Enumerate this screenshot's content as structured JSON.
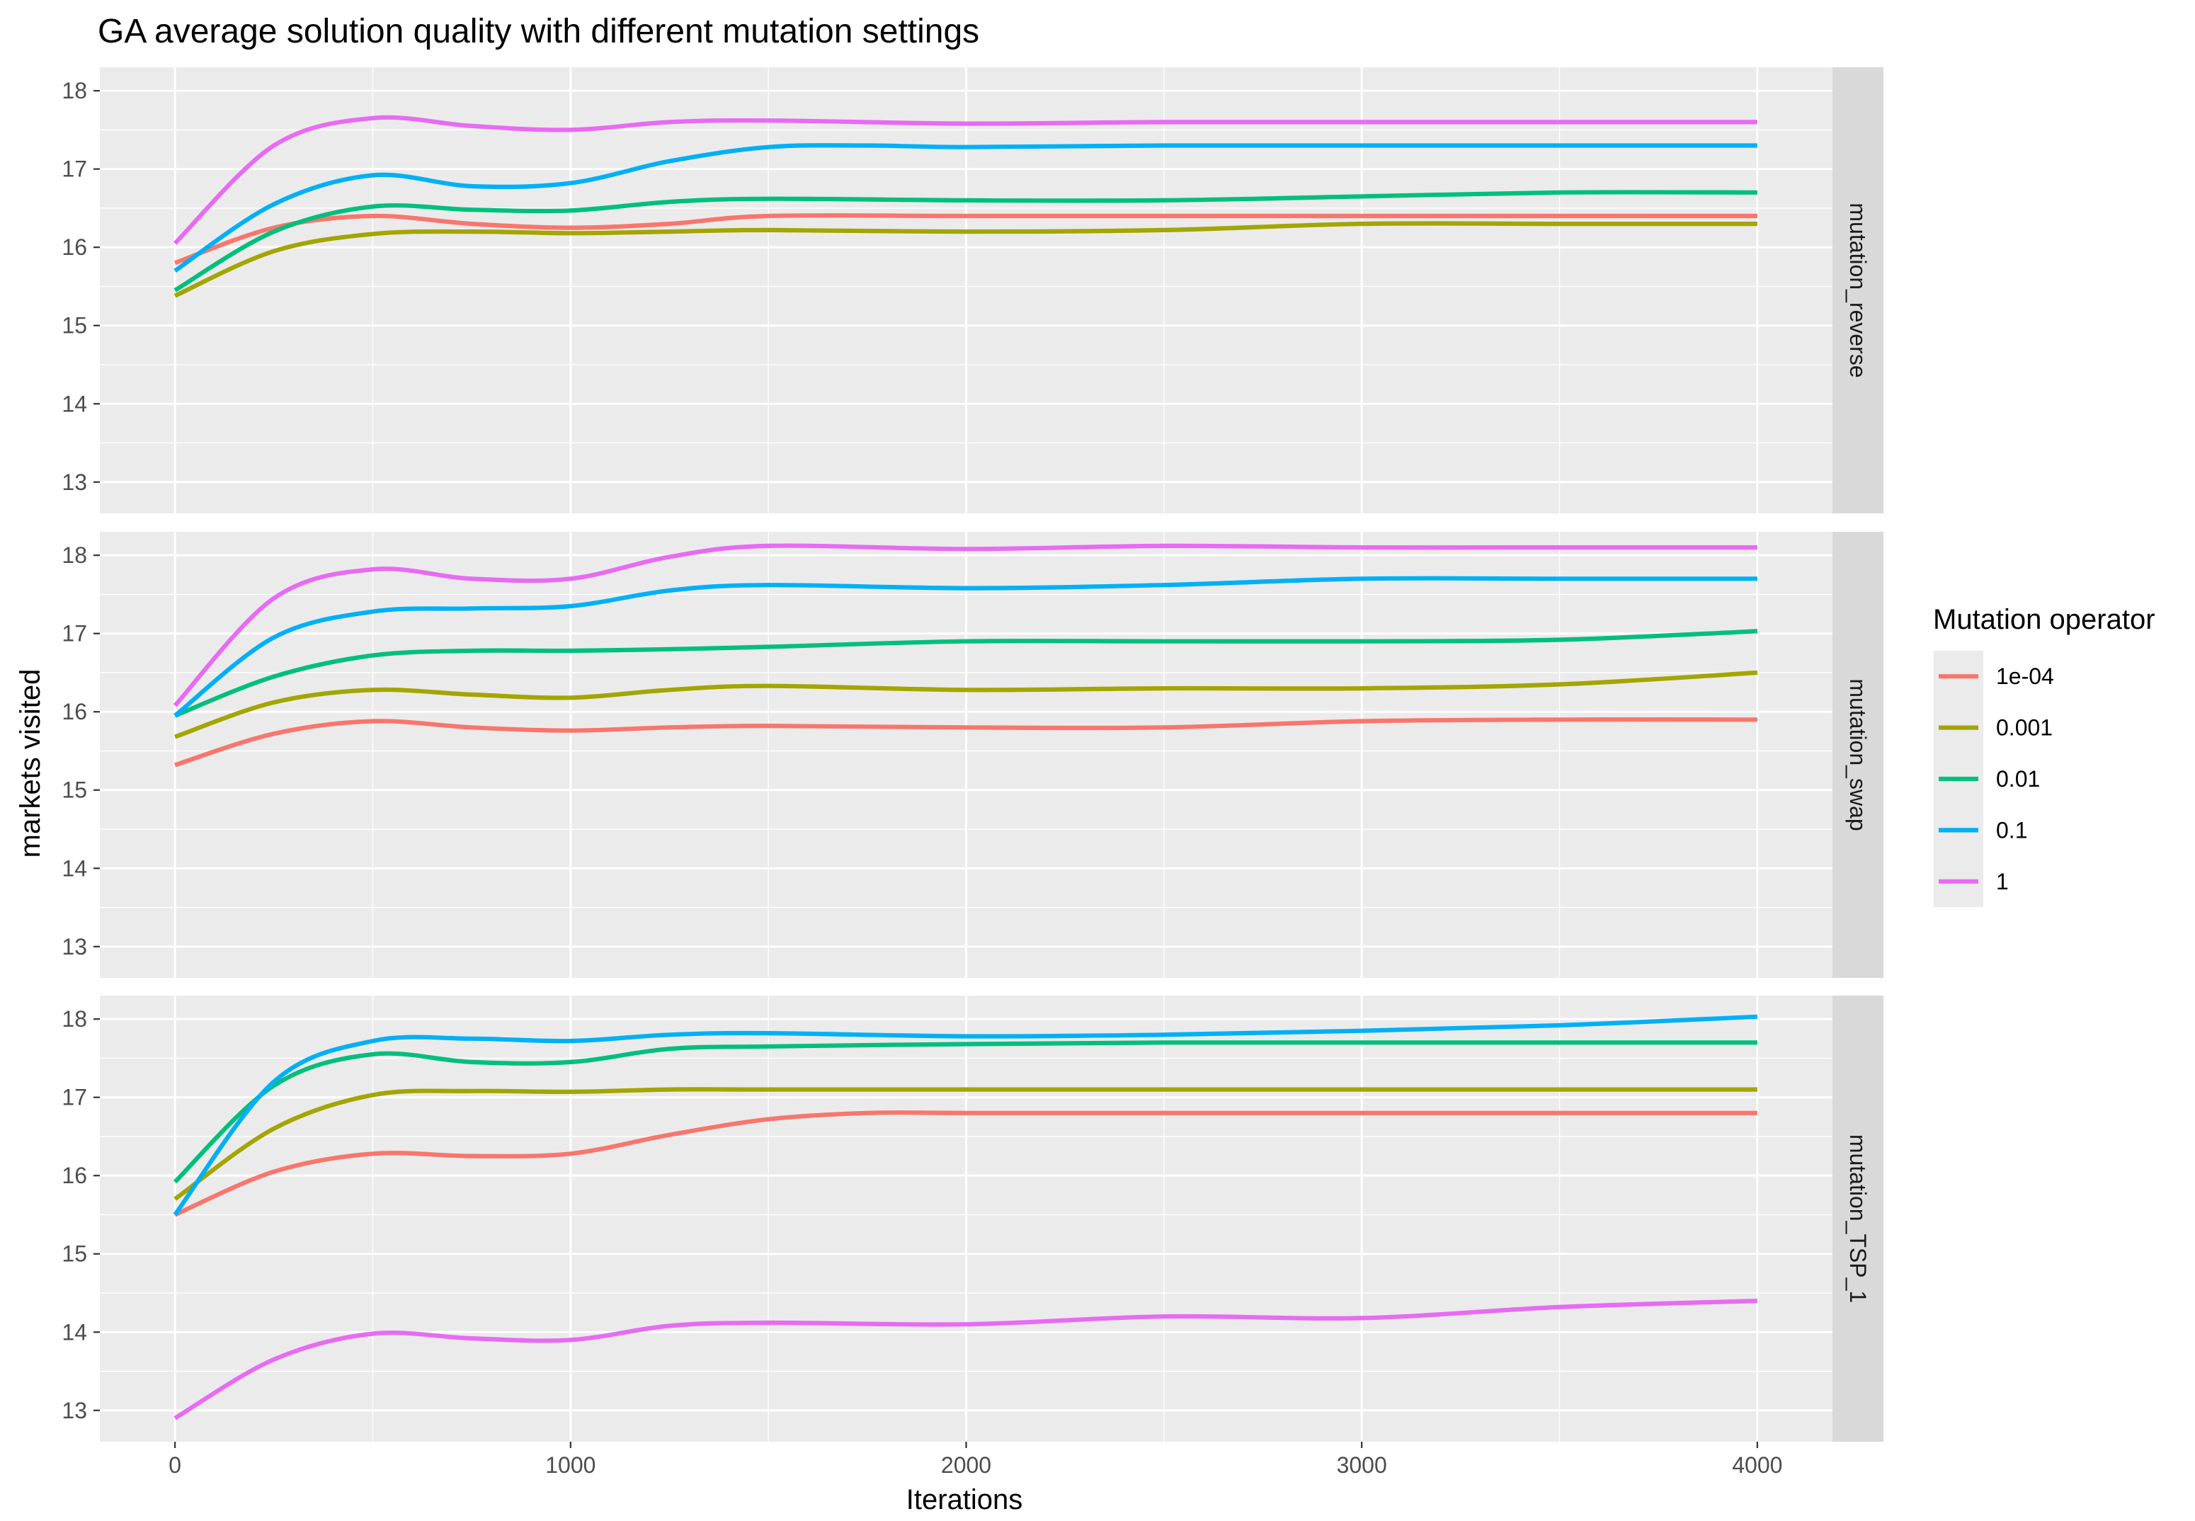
{
  "chart_data": {
    "type": "line",
    "title": "GA average solution quality with different mutation settings",
    "xlabel": "Iterations",
    "ylabel": "markets visited",
    "xlim": [
      -190,
      4190
    ],
    "ylim": [
      12.6,
      18.3
    ],
    "x_ticks": [
      "0",
      "1000",
      "2000",
      "3000",
      "4000"
    ],
    "x_tick_values": [
      0,
      1000,
      2000,
      3000,
      4000
    ],
    "y_ticks": [
      "13",
      "14",
      "15",
      "16",
      "17",
      "18"
    ],
    "y_tick_values": [
      13,
      14,
      15,
      16,
      17,
      18
    ],
    "grid": true,
    "legend": {
      "title": "Mutation operator",
      "position": "right",
      "entries": [
        "1e-04",
        "0.001",
        "0.01",
        "0.1",
        "1"
      ]
    },
    "colors": {
      "1e-04": "#F8766D",
      "0.001": "#A3A500",
      "0.01": "#00BF7D",
      "0.1": "#00B0F6",
      "1": "#E76BF3"
    },
    "facets": [
      {
        "label": "mutation_reverse",
        "series": [
          {
            "name": "1e-04",
            "x": [
              0,
              250,
              500,
              750,
              1000,
              1250,
              1500,
              2000,
              2500,
              3000,
              3500,
              4000
            ],
            "y": [
              15.8,
              16.25,
              16.4,
              16.3,
              16.25,
              16.3,
              16.4,
              16.4,
              16.4,
              16.4,
              16.4,
              16.4
            ]
          },
          {
            "name": "0.001",
            "x": [
              0,
              250,
              500,
              750,
              1000,
              1250,
              1500,
              2000,
              2500,
              3000,
              3500,
              4000
            ],
            "y": [
              15.38,
              15.95,
              16.17,
              16.2,
              16.18,
              16.2,
              16.22,
              16.2,
              16.22,
              16.3,
              16.3,
              16.3
            ]
          },
          {
            "name": "0.01",
            "x": [
              0,
              250,
              500,
              750,
              1000,
              1250,
              1500,
              2000,
              2500,
              3000,
              3500,
              4000
            ],
            "y": [
              15.45,
              16.2,
              16.52,
              16.48,
              16.47,
              16.58,
              16.62,
              16.6,
              16.6,
              16.65,
              16.7,
              16.7
            ]
          },
          {
            "name": "0.1",
            "x": [
              0,
              250,
              500,
              750,
              1000,
              1250,
              1500,
              1750,
              2000,
              2500,
              3000,
              3500,
              4000
            ],
            "y": [
              15.7,
              16.55,
              16.92,
              16.78,
              16.82,
              17.1,
              17.28,
              17.3,
              17.28,
              17.3,
              17.3,
              17.3,
              17.3
            ]
          },
          {
            "name": "1",
            "x": [
              0,
              250,
              500,
              750,
              1000,
              1250,
              1500,
              2000,
              2500,
              3000,
              3500,
              4000
            ],
            "y": [
              16.05,
              17.3,
              17.65,
              17.55,
              17.5,
              17.6,
              17.62,
              17.58,
              17.6,
              17.6,
              17.6,
              17.6
            ]
          }
        ]
      },
      {
        "label": "mutation_swap",
        "series": [
          {
            "name": "1e-04",
            "x": [
              0,
              250,
              500,
              750,
              1000,
              1250,
              1500,
              2000,
              2500,
              3000,
              3500,
              4000
            ],
            "y": [
              15.32,
              15.72,
              15.88,
              15.8,
              15.76,
              15.8,
              15.82,
              15.8,
              15.8,
              15.88,
              15.9,
              15.9
            ]
          },
          {
            "name": "0.001",
            "x": [
              0,
              250,
              500,
              750,
              1000,
              1250,
              1500,
              2000,
              2500,
              3000,
              3500,
              4000
            ],
            "y": [
              15.68,
              16.12,
              16.28,
              16.22,
              16.18,
              16.28,
              16.33,
              16.28,
              16.3,
              16.3,
              16.35,
              16.5
            ]
          },
          {
            "name": "0.01",
            "x": [
              0,
              250,
              500,
              750,
              1000,
              1250,
              1500,
              2000,
              2500,
              3000,
              3500,
              4000
            ],
            "y": [
              15.95,
              16.45,
              16.72,
              16.78,
              16.78,
              16.8,
              16.83,
              16.9,
              16.9,
              16.9,
              16.92,
              17.03
            ]
          },
          {
            "name": "0.1",
            "x": [
              0,
              250,
              500,
              750,
              1000,
              1250,
              1500,
              2000,
              2500,
              3000,
              3500,
              4000
            ],
            "y": [
              15.95,
              16.95,
              17.28,
              17.32,
              17.35,
              17.55,
              17.62,
              17.58,
              17.62,
              17.7,
              17.7,
              17.7
            ]
          },
          {
            "name": "1",
            "x": [
              0,
              250,
              500,
              750,
              1000,
              1250,
              1500,
              2000,
              2500,
              3000,
              3500,
              4000
            ],
            "y": [
              16.08,
              17.45,
              17.82,
              17.7,
              17.7,
              17.98,
              18.12,
              18.08,
              18.12,
              18.1,
              18.1,
              18.1
            ]
          }
        ]
      },
      {
        "label": "mutation_TSP_1",
        "series": [
          {
            "name": "1e-04",
            "x": [
              0,
              250,
              500,
              750,
              1000,
              1250,
              1500,
              1750,
              2000,
              2500,
              3000,
              3500,
              4000
            ],
            "y": [
              15.5,
              16.05,
              16.28,
              16.25,
              16.28,
              16.52,
              16.72,
              16.8,
              16.8,
              16.8,
              16.8,
              16.8,
              16.8
            ]
          },
          {
            "name": "0.001",
            "x": [
              0,
              250,
              500,
              750,
              1000,
              1250,
              1500,
              2000,
              2500,
              3000,
              3500,
              4000
            ],
            "y": [
              15.7,
              16.6,
              17.03,
              17.08,
              17.07,
              17.1,
              17.1,
              17.1,
              17.1,
              17.1,
              17.1,
              17.1
            ]
          },
          {
            "name": "0.01",
            "x": [
              0,
              250,
              500,
              750,
              1000,
              1250,
              1500,
              2000,
              2500,
              3000,
              3500,
              4000
            ],
            "y": [
              15.92,
              17.15,
              17.55,
              17.45,
              17.45,
              17.62,
              17.65,
              17.68,
              17.7,
              17.7,
              17.7,
              17.7
            ]
          },
          {
            "name": "0.1",
            "x": [
              0,
              250,
              500,
              750,
              1000,
              1250,
              1500,
              2000,
              2500,
              3000,
              3500,
              4000
            ],
            "y": [
              15.5,
              17.2,
              17.72,
              17.75,
              17.72,
              17.8,
              17.82,
              17.78,
              17.8,
              17.85,
              17.92,
              18.03
            ]
          },
          {
            "name": "1",
            "x": [
              0,
              250,
              500,
              750,
              1000,
              1250,
              1500,
              2000,
              2500,
              3000,
              3500,
              4000
            ],
            "y": [
              12.9,
              13.65,
              13.98,
              13.92,
              13.9,
              14.08,
              14.12,
              14.1,
              14.2,
              14.18,
              14.32,
              14.4
            ]
          }
        ]
      }
    ]
  }
}
